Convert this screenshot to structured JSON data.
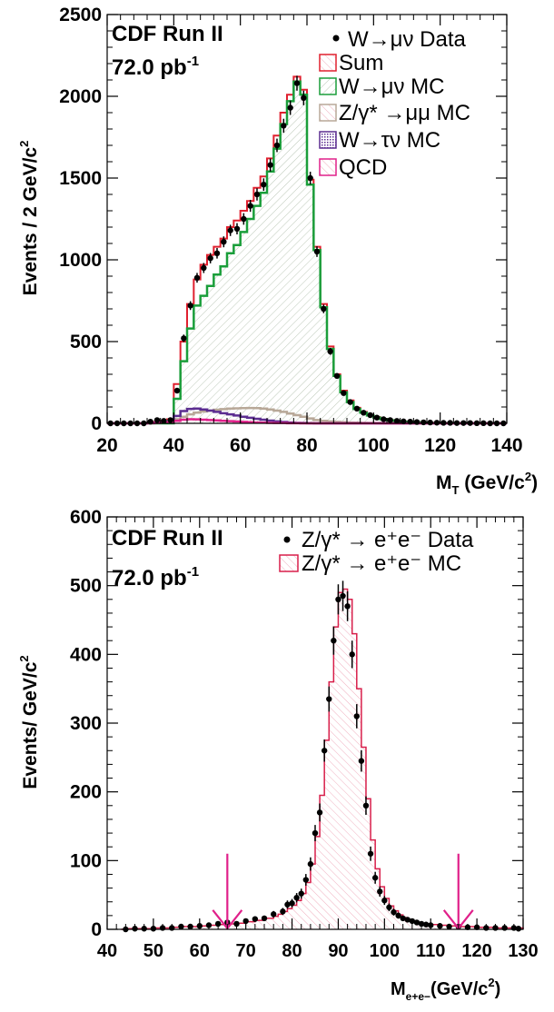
{
  "chart_data": [
    {
      "type": "histogram",
      "experiment": "CDF Run II",
      "luminosity_base": "72.0 pb",
      "luminosity_exp": "-1",
      "xlabel": "M",
      "xlabel_sub": "T",
      "xlabel_unit_base": " (GeV/c",
      "xlabel_unit_exp": "2",
      "xlabel_unit_close": ")",
      "ylabel_base": "Events / 2 GeV/c",
      "ylabel_exp": "2",
      "xlim": [
        20,
        140
      ],
      "ylim": [
        0,
        2500
      ],
      "x_ticks": [
        "20",
        "40",
        "60",
        "80",
        "100",
        "120",
        "140"
      ],
      "y_ticks": [
        "0",
        "500",
        "1000",
        "1500",
        "2000",
        "2500"
      ],
      "legend": {
        "data": "W→μν Data",
        "sum": "Sum",
        "wmunu": "W→μν MC",
        "zgamma": "Z/γ* →μμ MC",
        "wtaunu": "W→τν MC",
        "qcd": "QCD"
      },
      "bin_width": 2,
      "bin_lo": [
        20,
        22,
        24,
        26,
        28,
        30,
        32,
        34,
        36,
        38,
        40,
        42,
        44,
        46,
        48,
        50,
        52,
        54,
        56,
        58,
        60,
        62,
        64,
        66,
        68,
        70,
        72,
        74,
        76,
        78,
        80,
        82,
        84,
        86,
        88,
        90,
        92,
        94,
        96,
        98,
        100,
        102,
        104,
        106,
        108,
        110,
        112,
        114,
        116,
        118,
        120,
        122,
        124,
        126,
        128,
        130,
        132,
        134,
        136,
        138
      ],
      "data": [
        0,
        0,
        0,
        0,
        0,
        0,
        10,
        20,
        15,
        20,
        200,
        520,
        720,
        890,
        950,
        1010,
        1040,
        1110,
        1180,
        1190,
        1250,
        1330,
        1400,
        1460,
        1580,
        1700,
        1820,
        1930,
        2080,
        1990,
        1500,
        1050,
        700,
        440,
        290,
        185,
        130,
        90,
        65,
        50,
        35,
        25,
        20,
        15,
        12,
        10,
        8,
        6,
        5,
        4,
        3,
        3,
        2,
        2,
        2,
        1,
        1,
        0,
        0,
        0
      ],
      "series": {
        "sum": [
          0,
          0,
          0,
          0,
          0,
          0,
          5,
          10,
          15,
          25,
          240,
          500,
          730,
          880,
          970,
          1030,
          1080,
          1130,
          1200,
          1240,
          1300,
          1360,
          1440,
          1510,
          1620,
          1760,
          1900,
          2010,
          2120,
          2040,
          1490,
          1080,
          730,
          470,
          300,
          200,
          140,
          95,
          70,
          50,
          38,
          28,
          20,
          15,
          12,
          9,
          7,
          5,
          4,
          3,
          3,
          2,
          2,
          2,
          1,
          1,
          1,
          0,
          0,
          0
        ],
        "wmunu": [
          0,
          0,
          0,
          0,
          0,
          0,
          0,
          0,
          0,
          0,
          150,
          380,
          580,
          720,
          780,
          840,
          910,
          960,
          1040,
          1090,
          1170,
          1250,
          1330,
          1410,
          1540,
          1680,
          1830,
          1970,
          2090,
          2010,
          1460,
          1060,
          710,
          455,
          290,
          190,
          130,
          88,
          65,
          48,
          35,
          25,
          18,
          13,
          10,
          8,
          6,
          4,
          3,
          2,
          2,
          1,
          1,
          1,
          0,
          0,
          0,
          0,
          0,
          0
        ],
        "zgamma": [
          0,
          0,
          0,
          0,
          0,
          0,
          3,
          6,
          10,
          15,
          25,
          40,
          55,
          65,
          72,
          78,
          83,
          87,
          90,
          92,
          93,
          94,
          93,
          90,
          85,
          78,
          70,
          60,
          50,
          40,
          30,
          20,
          15,
          12,
          9,
          7,
          5,
          4,
          3,
          2,
          2,
          1,
          1,
          1,
          0,
          0,
          0,
          0,
          0,
          0,
          0,
          0,
          0,
          0,
          0,
          0,
          0,
          0,
          0,
          0
        ],
        "wtaunu": [
          0,
          0,
          0,
          0,
          0,
          0,
          2,
          4,
          8,
          12,
          45,
          75,
          88,
          90,
          85,
          78,
          70,
          62,
          55,
          48,
          40,
          34,
          28,
          22,
          17,
          12,
          8,
          5,
          3,
          2,
          1,
          0,
          0,
          0,
          0,
          0,
          0,
          0,
          0,
          0,
          0,
          0,
          0,
          0,
          0,
          0,
          0,
          0,
          0,
          0,
          0,
          0,
          0,
          0,
          0,
          0,
          0,
          0,
          0,
          0
        ],
        "qcd": [
          0,
          0,
          0,
          0,
          0,
          0,
          1,
          3,
          5,
          8,
          15,
          22,
          25,
          24,
          22,
          20,
          18,
          15,
          13,
          11,
          9,
          7,
          5,
          4,
          3,
          2,
          2,
          1,
          1,
          0,
          0,
          0,
          0,
          0,
          0,
          0,
          0,
          0,
          0,
          0,
          0,
          0,
          0,
          0,
          0,
          0,
          0,
          0,
          0,
          0,
          0,
          0,
          0,
          0,
          0,
          0,
          0,
          0,
          0,
          0
        ]
      },
      "colors": {
        "sum": "#e0202f",
        "wmunu": "#1a9e3a",
        "zgamma": "#b8a898",
        "wtaunu": "#5b2d90",
        "qcd": "#e0208a",
        "data": "#000000"
      },
      "grid": false,
      "legend_position": "top-right"
    },
    {
      "type": "histogram",
      "experiment": "CDF Run II",
      "luminosity_base": "72.0 pb",
      "luminosity_exp": "-1",
      "xlabel": "M",
      "xlabel_sub": "e+e−",
      "xlabel_unit_base": "(GeV/c",
      "xlabel_unit_exp": "2",
      "xlabel_unit_close": ")",
      "ylabel_base": "Events/ GeV/c",
      "ylabel_exp": "2",
      "xlim": [
        40,
        130
      ],
      "ylim": [
        0,
        600
      ],
      "x_ticks": [
        "40",
        "50",
        "60",
        "70",
        "80",
        "90",
        "100",
        "110",
        "120",
        "130"
      ],
      "y_ticks": [
        "0",
        "100",
        "200",
        "300",
        "400",
        "500",
        "600"
      ],
      "legend": {
        "data": "Z/γ* → e⁺e⁻ Data",
        "mc": "Z/γ* → e⁺e⁻ MC"
      },
      "arrows_x": [
        66,
        116
      ],
      "data_points": [
        [
          44,
          0
        ],
        [
          46,
          1
        ],
        [
          48,
          1
        ],
        [
          50,
          1
        ],
        [
          52,
          2
        ],
        [
          54,
          2
        ],
        [
          56,
          4
        ],
        [
          58,
          4
        ],
        [
          60,
          5
        ],
        [
          62,
          6
        ],
        [
          64,
          8
        ],
        [
          66,
          10
        ],
        [
          68,
          8
        ],
        [
          70,
          12
        ],
        [
          72,
          15
        ],
        [
          74,
          16
        ],
        [
          76,
          22
        ],
        [
          78,
          26
        ],
        [
          79,
          36
        ],
        [
          80,
          38
        ],
        [
          81,
          46
        ],
        [
          82,
          52
        ],
        [
          83,
          72
        ],
        [
          84,
          95
        ],
        [
          85,
          140
        ],
        [
          86,
          170
        ],
        [
          87,
          260
        ],
        [
          88,
          335
        ],
        [
          89,
          420
        ],
        [
          90,
          480
        ],
        [
          91,
          485
        ],
        [
          92,
          470
        ],
        [
          93,
          400
        ],
        [
          94,
          310
        ],
        [
          95,
          245
        ],
        [
          96,
          180
        ],
        [
          97,
          110
        ],
        [
          98,
          75
        ],
        [
          99,
          55
        ],
        [
          100,
          42
        ],
        [
          101,
          32
        ],
        [
          102,
          25
        ],
        [
          103,
          20
        ],
        [
          104,
          16
        ],
        [
          105,
          14
        ],
        [
          106,
          12
        ],
        [
          107,
          10
        ],
        [
          108,
          8
        ],
        [
          109,
          7
        ],
        [
          110,
          6
        ],
        [
          112,
          5
        ],
        [
          114,
          4
        ],
        [
          116,
          4
        ],
        [
          118,
          3
        ],
        [
          120,
          3
        ],
        [
          122,
          2
        ],
        [
          124,
          2
        ],
        [
          126,
          2
        ],
        [
          128,
          2
        ],
        [
          129,
          1
        ]
      ],
      "mc_bins": [
        [
          43,
          0
        ],
        [
          44,
          1
        ],
        [
          46,
          1
        ],
        [
          48,
          1
        ],
        [
          50,
          2
        ],
        [
          52,
          2
        ],
        [
          54,
          3
        ],
        [
          56,
          4
        ],
        [
          58,
          4
        ],
        [
          60,
          5
        ],
        [
          62,
          6
        ],
        [
          64,
          7
        ],
        [
          66,
          8
        ],
        [
          68,
          9
        ],
        [
          70,
          11
        ],
        [
          72,
          13
        ],
        [
          74,
          16
        ],
        [
          76,
          19
        ],
        [
          77,
          22
        ],
        [
          78,
          26
        ],
        [
          79,
          30
        ],
        [
          80,
          35
        ],
        [
          81,
          42
        ],
        [
          82,
          52
        ],
        [
          83,
          68
        ],
        [
          84,
          95
        ],
        [
          85,
          135
        ],
        [
          86,
          195
        ],
        [
          87,
          275
        ],
        [
          88,
          360
        ],
        [
          89,
          440
        ],
        [
          90,
          490
        ],
        [
          91,
          495
        ],
        [
          92,
          480
        ],
        [
          93,
          430
        ],
        [
          94,
          350
        ],
        [
          95,
          265
        ],
        [
          96,
          190
        ],
        [
          97,
          130
        ],
        [
          98,
          88
        ],
        [
          99,
          62
        ],
        [
          100,
          45
        ],
        [
          101,
          34
        ],
        [
          102,
          27
        ],
        [
          103,
          21
        ],
        [
          104,
          17
        ],
        [
          105,
          14
        ],
        [
          106,
          12
        ],
        [
          107,
          10
        ],
        [
          108,
          9
        ],
        [
          109,
          8
        ],
        [
          110,
          7
        ],
        [
          112,
          6
        ],
        [
          114,
          5
        ],
        [
          116,
          4
        ],
        [
          118,
          4
        ],
        [
          120,
          3
        ],
        [
          122,
          3
        ],
        [
          124,
          2
        ],
        [
          126,
          2
        ],
        [
          128,
          2
        ]
      ],
      "colors": {
        "mc": "#d81e4a",
        "arrow": "#e0208a",
        "data": "#000000"
      },
      "grid": false,
      "legend_position": "top-right"
    }
  ]
}
